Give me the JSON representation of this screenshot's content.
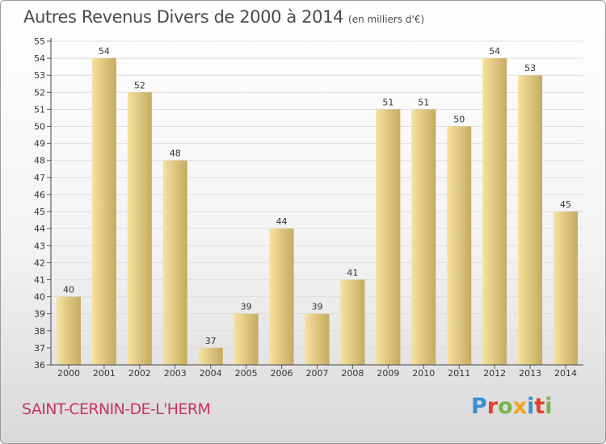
{
  "header": {
    "title": "Autres Revenus Divers de 2000 à 2014",
    "unit": "(en milliers d'€)"
  },
  "footer": {
    "town": "SAINT-CERNIN-DE-L'HERM",
    "logo": "Proxiti",
    "logo_colors": [
      "#3a8fcf",
      "#e0402a",
      "#7ab648",
      "#f2a21e",
      "#3a8fcf",
      "#e0402a",
      "#7ab648"
    ]
  },
  "colors": {
    "bar_light": "#f6e2a0",
    "bar_dark": "#c6aa5f",
    "grid": "#dddddd",
    "axis_text": "#333333",
    "town": "#c8326a"
  },
  "chart_data": {
    "type": "bar",
    "categories": [
      "2000",
      "2001",
      "2002",
      "2003",
      "2004",
      "2005",
      "2006",
      "2007",
      "2008",
      "2009",
      "2010",
      "2011",
      "2012",
      "2013",
      "2014"
    ],
    "values": [
      40,
      54,
      52,
      48,
      37,
      39,
      44,
      39,
      41,
      51,
      51,
      50,
      54,
      53,
      45
    ],
    "ylim": [
      36,
      55
    ],
    "yticks": [
      36,
      37,
      38,
      39,
      40,
      41,
      42,
      43,
      44,
      45,
      46,
      47,
      48,
      49,
      50,
      51,
      52,
      53,
      54,
      55
    ],
    "grid": true,
    "title": "Autres Revenus Divers de 2000 à 2014",
    "xlabel": "",
    "ylabel": ""
  }
}
